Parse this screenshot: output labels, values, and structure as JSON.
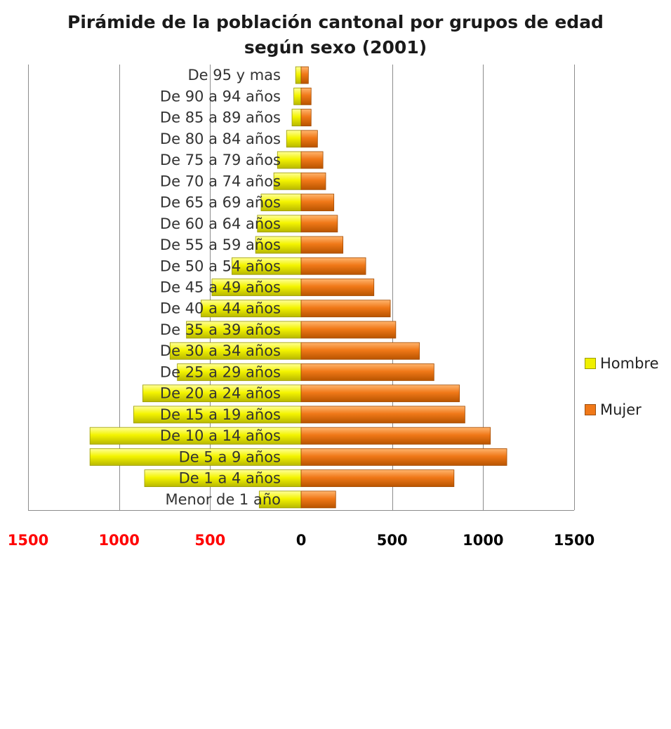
{
  "chart_data": {
    "type": "bar",
    "orientation": "horizontal",
    "title_line1": "Pirámide de la población cantonal por grupos de edad",
    "title_line2": "según sexo (2001)",
    "categories": [
      "Menor de 1 año",
      "De 1 a 4 años",
      "De 5 a 9 años",
      "De 10 a 14 años",
      "De 15 a 19 años",
      "De 20 a 24 años",
      "De 25 a 29 años",
      "De 30 a 34 años",
      "De 35 a 39 años",
      "De 40 a 44 años",
      "De 45 a 49 años",
      "De 50 a 54 años",
      "De 55 a 59 años",
      "De 60 a 64 años",
      "De 65 a 69 años",
      "De 70 a 74 años",
      "De 75 a 79 años",
      "De 80 a 84 años",
      "De 85 a 89 años",
      "De 90 a 94 años",
      "De 95 y mas"
    ],
    "series": [
      {
        "name": "Hombre",
        "color": "#f0f000",
        "values": [
          230,
          860,
          1160,
          1160,
          920,
          870,
          680,
          720,
          630,
          550,
          490,
          380,
          250,
          240,
          220,
          150,
          130,
          80,
          50,
          40,
          30
        ]
      },
      {
        "name": "Mujer",
        "color": "#f07818",
        "values": [
          190,
          840,
          1130,
          1040,
          900,
          870,
          730,
          650,
          520,
          490,
          400,
          355,
          230,
          200,
          180,
          135,
          120,
          90,
          55,
          55,
          40
        ]
      }
    ],
    "xlim": [
      -1500,
      1500
    ],
    "x_ticks": [
      {
        "value": -1500,
        "label": "1500"
      },
      {
        "value": -1000,
        "label": "1000"
      },
      {
        "value": -500,
        "label": "500"
      },
      {
        "value": 0,
        "label": "0"
      },
      {
        "value": 500,
        "label": "500"
      },
      {
        "value": 1000,
        "label": "1000"
      },
      {
        "value": 1500,
        "label": "1500"
      }
    ],
    "negative_tick_color": "#ff0000",
    "positive_tick_color": "#000000",
    "gridlines": true,
    "legend_position": "right"
  }
}
